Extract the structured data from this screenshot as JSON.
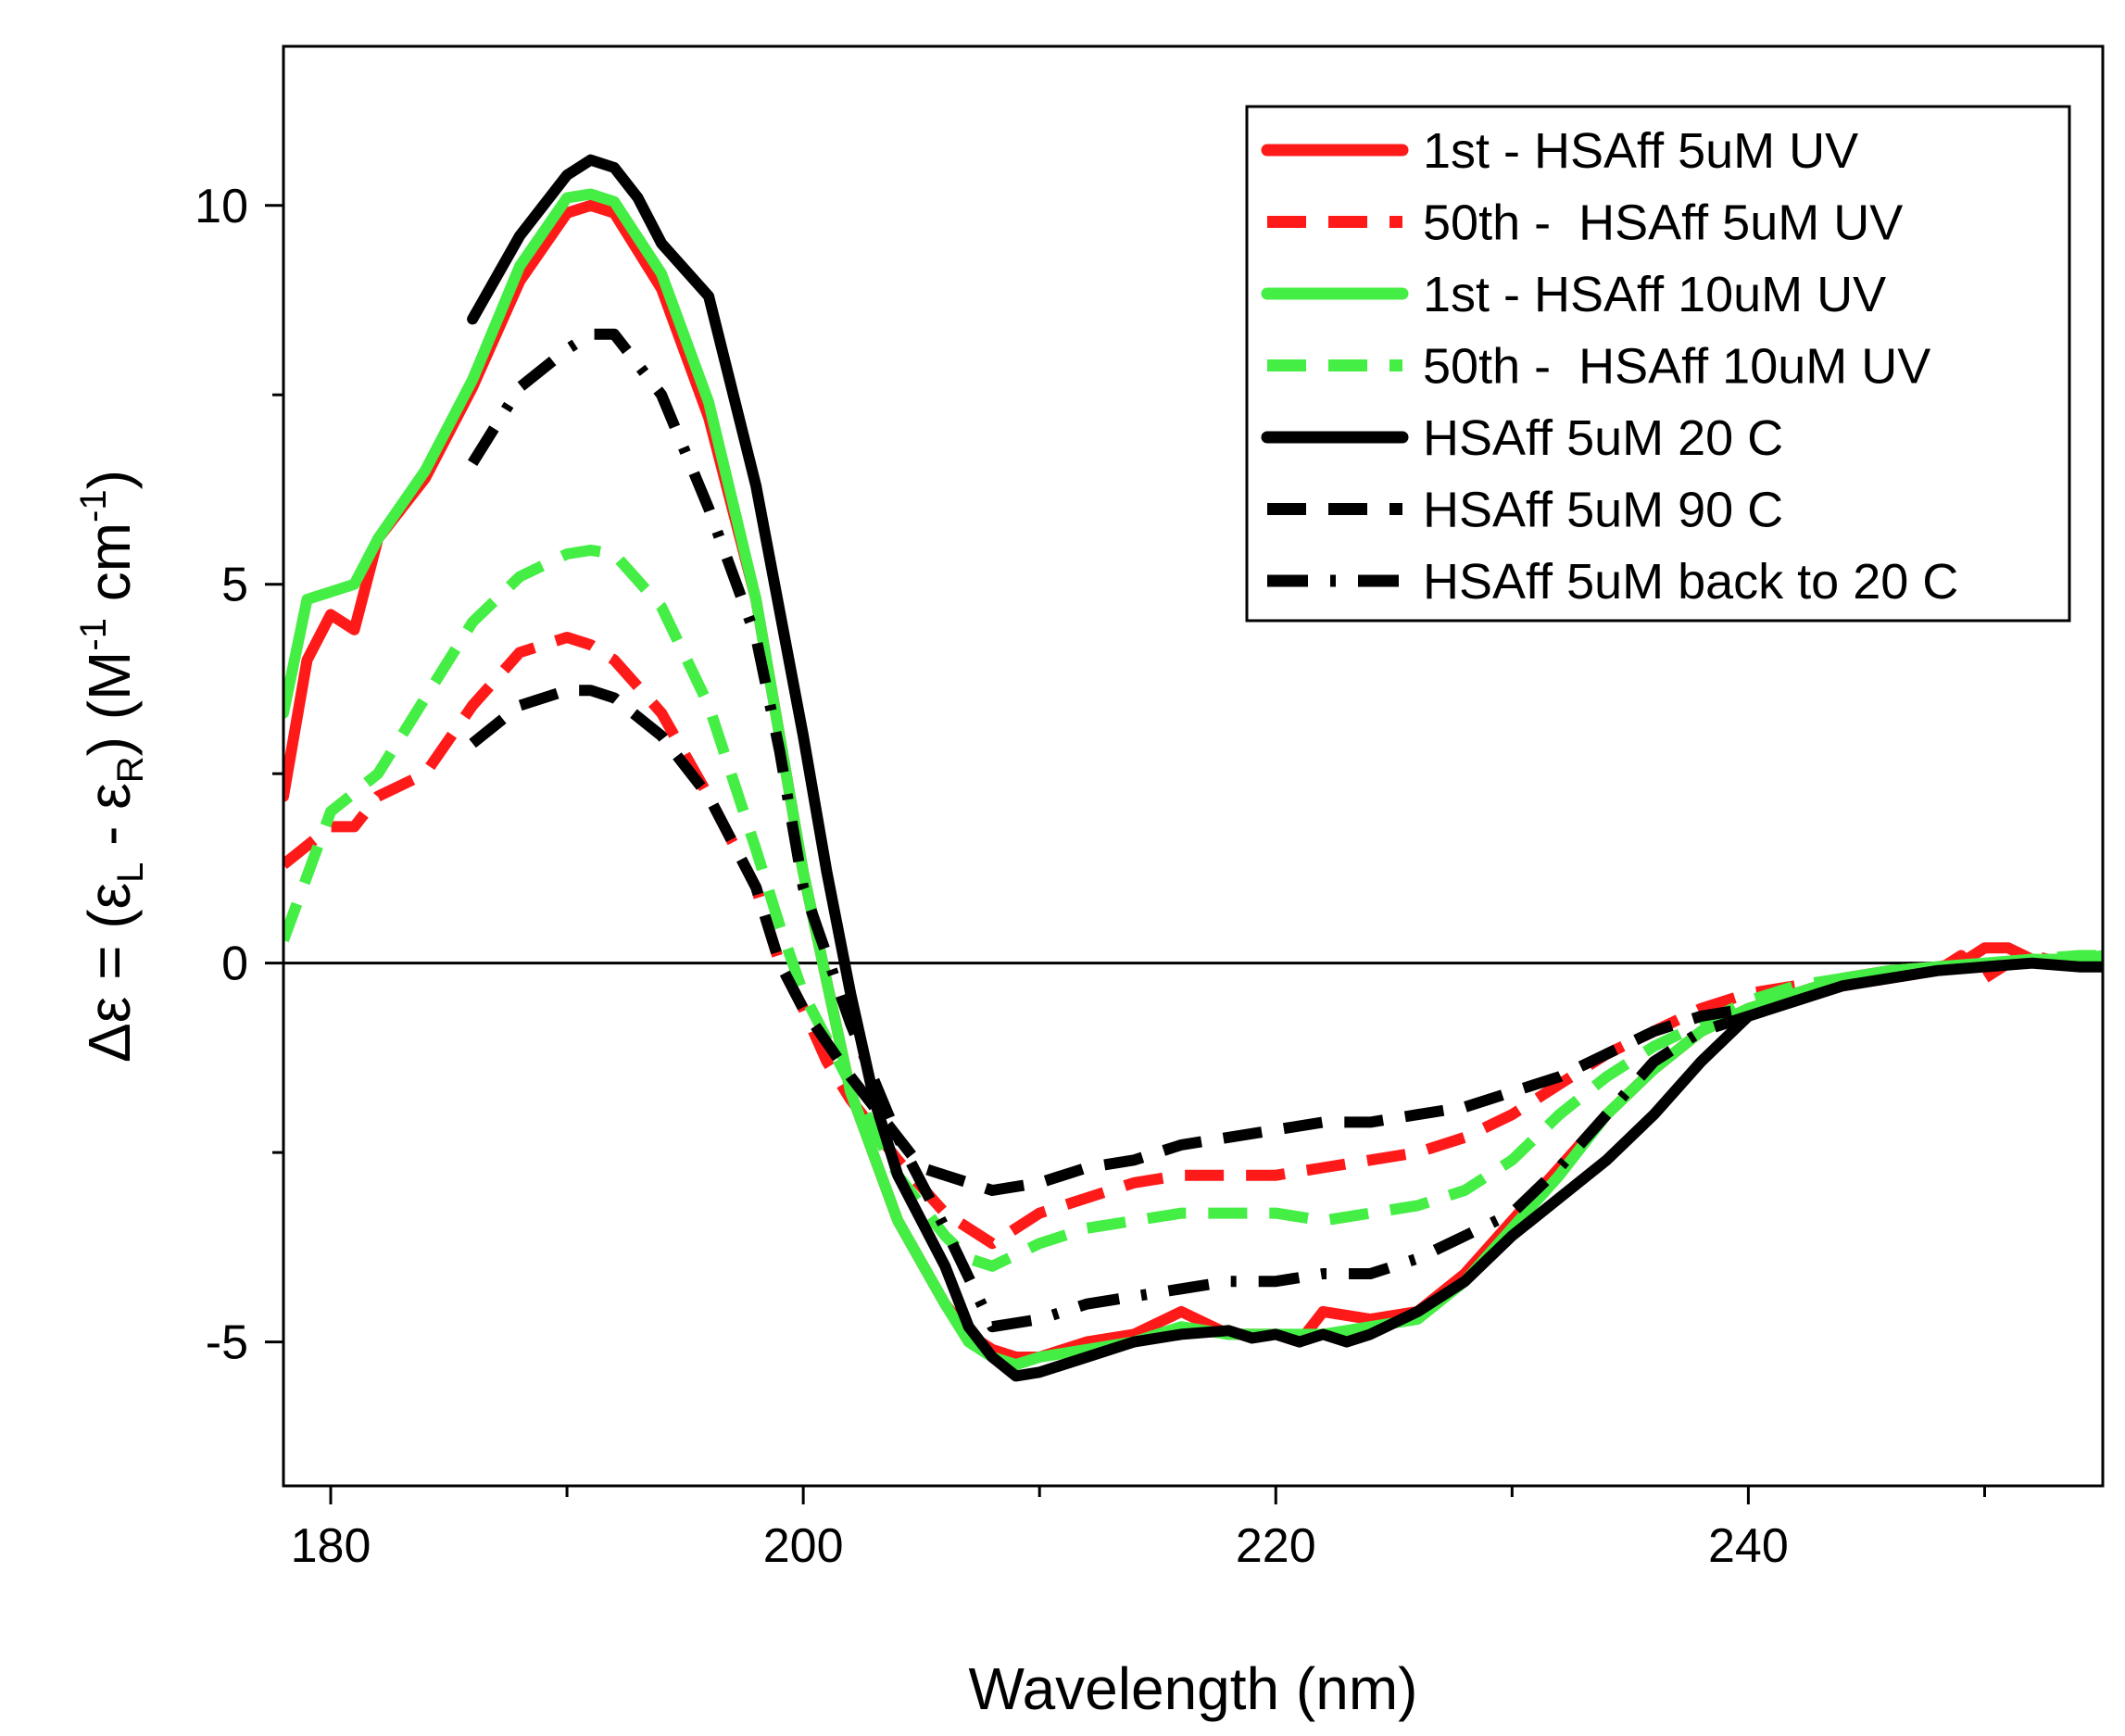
{
  "chart_data": {
    "type": "line",
    "title": "",
    "xlabel": "Wavelength (nm)",
    "ylabel": {
      "prefix": "Δε = (ε",
      "sub_L": "L",
      "mid": " - ε",
      "sub_R": "R",
      "mid2": ") (M",
      "sup1": "-1",
      "mid3": " cm",
      "sup2": "-1",
      "suffix": ")"
    },
    "xlim": [
      178,
      255
    ],
    "ylim": [
      -6.9,
      12.1
    ],
    "xticks": [
      180,
      200,
      220,
      240
    ],
    "xtick_labels": [
      "180",
      "200",
      "220",
      "240"
    ],
    "x_minor_ticks": [
      190,
      210,
      230,
      250
    ],
    "yticks": [
      10,
      5,
      0,
      -5
    ],
    "ytick_labels": [
      "10",
      "5",
      "0",
      "-5"
    ],
    "y_minor_ticks": [
      7.5,
      2.5,
      -2.5
    ],
    "zero_line": true,
    "grid": false,
    "legend_position": "top-right",
    "series": [
      {
        "name": "1st - HSAff 5uM UV",
        "color": "#ff1a1a",
        "dash": "solid",
        "x": [
          178,
          179,
          180,
          181,
          182,
          184,
          186,
          188,
          190,
          191,
          192,
          194,
          196,
          198,
          200,
          202,
          204,
          206,
          207,
          208,
          209,
          210,
          212,
          214,
          216,
          218,
          220,
          221,
          222,
          224,
          226,
          228,
          230,
          232,
          234,
          236,
          238,
          240,
          242,
          244,
          246,
          248,
          249,
          250,
          251,
          252,
          254,
          255
        ],
        "y": [
          2.2,
          4.0,
          4.6,
          4.4,
          5.6,
          6.4,
          7.6,
          9.0,
          9.9,
          10.0,
          9.9,
          8.9,
          7.2,
          4.8,
          1.2,
          -1.7,
          -3.4,
          -4.5,
          -4.9,
          -5.1,
          -5.2,
          -5.2,
          -5.0,
          -4.9,
          -4.6,
          -4.9,
          -4.9,
          -5.0,
          -4.6,
          -4.7,
          -4.6,
          -4.1,
          -3.4,
          -2.7,
          -2.0,
          -1.4,
          -0.9,
          -0.6,
          -0.4,
          -0.2,
          -0.1,
          -0.05,
          0.0,
          0.2,
          0.2,
          0.05,
          0.0,
          -0.05
        ]
      },
      {
        "name": "50th -  HSAff 5uM UV",
        "color": "#ff1a1a",
        "dash": "dash",
        "x": [
          178,
          180,
          181,
          182,
          184,
          186,
          188,
          190,
          191,
          192,
          194,
          196,
          198,
          199,
          200,
          201,
          202,
          204,
          206,
          208,
          210,
          212,
          214,
          216,
          218,
          220,
          222,
          224,
          226,
          228,
          230,
          232,
          234,
          236,
          238,
          240,
          242,
          244,
          246,
          248,
          249,
          250,
          251,
          252,
          254,
          255
        ],
        "y": [
          1.3,
          1.8,
          1.8,
          2.2,
          2.5,
          3.4,
          4.1,
          4.3,
          4.2,
          4.0,
          3.3,
          2.2,
          1.0,
          0.0,
          -0.6,
          -1.3,
          -1.8,
          -2.6,
          -3.3,
          -3.7,
          -3.3,
          -3.1,
          -2.9,
          -2.8,
          -2.8,
          -2.8,
          -2.7,
          -2.6,
          -2.5,
          -2.3,
          -2.0,
          -1.6,
          -1.2,
          -0.9,
          -0.6,
          -0.4,
          -0.3,
          -0.3,
          -0.2,
          -0.1,
          0.1,
          -0.2,
          0.0,
          0.1,
          -0.05,
          0.0
        ]
      },
      {
        "name": "1st - HSAff 10uM UV",
        "color": "#44ee44",
        "dash": "solid",
        "x": [
          178,
          179,
          180,
          181,
          182,
          184,
          186,
          188,
          190,
          191,
          192,
          194,
          196,
          198,
          200,
          202,
          204,
          206,
          207,
          208,
          209,
          210,
          212,
          214,
          216,
          218,
          220,
          222,
          224,
          226,
          228,
          230,
          232,
          234,
          236,
          238,
          240,
          242,
          244,
          246,
          248,
          250,
          252,
          254,
          255
        ],
        "y": [
          3.3,
          4.8,
          4.9,
          5.0,
          5.6,
          6.5,
          7.7,
          9.2,
          10.1,
          10.15,
          10.05,
          9.1,
          7.4,
          4.8,
          1.2,
          -1.7,
          -3.4,
          -4.5,
          -5.0,
          -5.2,
          -5.3,
          -5.2,
          -5.1,
          -5.0,
          -4.8,
          -4.9,
          -4.9,
          -4.9,
          -4.8,
          -4.7,
          -4.2,
          -3.5,
          -2.8,
          -2.0,
          -1.4,
          -0.9,
          -0.6,
          -0.4,
          -0.2,
          -0.1,
          -0.05,
          0.0,
          0.05,
          0.05,
          0.1
        ]
      },
      {
        "name": "50th -  HSAff 10uM UV",
        "color": "#44ee44",
        "dash": "dash",
        "x": [
          178,
          180,
          182,
          184,
          186,
          188,
          190,
          191,
          192,
          194,
          196,
          198,
          199,
          200,
          202,
          204,
          206,
          207,
          208,
          210,
          212,
          214,
          216,
          218,
          220,
          222,
          224,
          226,
          228,
          230,
          232,
          234,
          236,
          238,
          240,
          242,
          244,
          246,
          248,
          250,
          252,
          254,
          255
        ],
        "y": [
          0.3,
          2.0,
          2.5,
          3.5,
          4.5,
          5.1,
          5.4,
          5.45,
          5.4,
          4.7,
          3.4,
          1.5,
          0.5,
          -0.4,
          -1.6,
          -2.8,
          -3.6,
          -3.9,
          -4.0,
          -3.7,
          -3.5,
          -3.4,
          -3.3,
          -3.3,
          -3.3,
          -3.4,
          -3.3,
          -3.2,
          -3.0,
          -2.6,
          -2.0,
          -1.5,
          -1.1,
          -0.8,
          -0.5,
          -0.3,
          -0.2,
          -0.1,
          -0.05,
          0.0,
          0.05,
          0.1,
          0.1
        ]
      },
      {
        "name": "HSAff 5uM 20 C",
        "color": "#000000",
        "dash": "solid",
        "x": [
          186,
          188,
          190,
          191,
          192,
          193,
          194,
          196,
          198,
          200,
          201,
          202,
          203,
          204,
          206,
          207,
          208,
          209,
          210,
          212,
          214,
          216,
          218,
          219,
          220,
          221,
          222,
          223,
          224,
          226,
          228,
          230,
          232,
          234,
          236,
          238,
          240,
          242,
          244,
          246,
          248,
          250,
          252,
          254,
          255
        ],
        "y": [
          8.5,
          9.6,
          10.4,
          10.6,
          10.5,
          10.1,
          9.5,
          8.8,
          6.3,
          3.0,
          1.2,
          -0.4,
          -1.8,
          -2.8,
          -4.0,
          -4.8,
          -5.2,
          -5.45,
          -5.4,
          -5.2,
          -5.0,
          -4.9,
          -4.85,
          -4.95,
          -4.9,
          -5.0,
          -4.9,
          -5.0,
          -4.9,
          -4.6,
          -4.2,
          -3.6,
          -3.1,
          -2.6,
          -2.0,
          -1.3,
          -0.7,
          -0.5,
          -0.3,
          -0.2,
          -0.1,
          -0.05,
          0.0,
          -0.05,
          -0.05
        ]
      },
      {
        "name": "HSAff 5uM 90 C",
        "color": "#000000",
        "dash": "dash",
        "x": [
          186,
          188,
          190,
          191,
          192,
          194,
          196,
          198,
          199,
          200,
          202,
          204,
          205,
          206,
          207,
          208,
          210,
          212,
          214,
          216,
          218,
          220,
          222,
          224,
          226,
          228,
          230,
          232,
          234,
          236,
          238,
          240
        ],
        "y": [
          2.9,
          3.4,
          3.6,
          3.6,
          3.5,
          3.0,
          2.2,
          1.0,
          0.0,
          -0.6,
          -1.5,
          -2.3,
          -2.7,
          -2.8,
          -2.9,
          -3.0,
          -2.9,
          -2.7,
          -2.6,
          -2.4,
          -2.3,
          -2.2,
          -2.1,
          -2.1,
          -2.0,
          -1.9,
          -1.7,
          -1.5,
          -1.2,
          -0.9,
          -0.7,
          -0.6
        ]
      },
      {
        "name": "HSAff 5uM back to 20 C",
        "color": "#000000",
        "dash": "dashdot",
        "x": [
          186,
          188,
          190,
          191,
          192,
          194,
          196,
          198,
          199,
          200,
          202,
          204,
          206,
          208,
          210,
          212,
          214,
          216,
          218,
          220,
          222,
          224,
          226,
          228,
          230,
          232,
          234,
          236,
          238,
          240
        ],
        "y": [
          6.6,
          7.6,
          8.1,
          8.3,
          8.3,
          7.5,
          6.0,
          4.3,
          2.8,
          1.0,
          -0.8,
          -2.3,
          -3.5,
          -4.8,
          -4.7,
          -4.5,
          -4.4,
          -4.3,
          -4.2,
          -4.2,
          -4.1,
          -4.1,
          -3.9,
          -3.6,
          -3.3,
          -2.7,
          -2.0,
          -1.3,
          -0.9,
          -0.7
        ]
      }
    ]
  }
}
